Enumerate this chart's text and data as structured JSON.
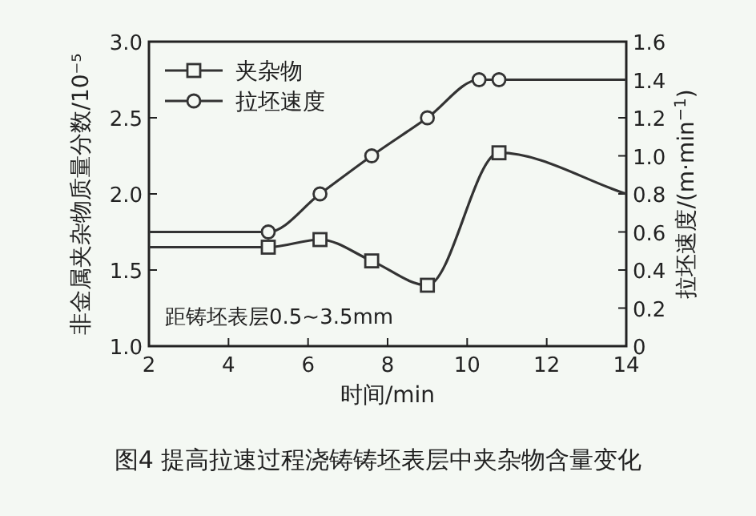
{
  "chart_data": {
    "type": "line",
    "title": "图4  提高拉速过程浇铸铸坯表层中夹杂物含量变化",
    "xlabel": "时间/min",
    "ylabel": "非金属夹杂物质量分数/10⁻⁵",
    "y2label": "拉坯速度/(m·min$^{−1}$)",
    "annotations": [
      "距铸坯表层0.5~3.5mm"
    ],
    "xlim": [
      2,
      14
    ],
    "xticks": [
      2,
      4,
      6,
      8,
      10,
      12,
      14
    ],
    "ylim": [
      1.0,
      3.0
    ],
    "yticks": [
      {
        "value": 1.0,
        "label": "1.0"
      },
      1.5,
      {
        "value": 2.0,
        "label": "2.0"
      },
      2.5,
      {
        "value": 3.0,
        "label": "3.0"
      }
    ],
    "y2lim": [
      0,
      1.6
    ],
    "y2ticks": [
      0,
      0.2,
      0.4,
      0.6,
      0.8,
      {
        "value": 1.0,
        "label": "1.0"
      },
      1.2,
      1.4,
      1.6
    ],
    "legend": "top left",
    "grid": false,
    "line_style": "solid",
    "series": [
      {
        "name": "夹杂物",
        "color": "#333333",
        "marker": "square",
        "axis": "y",
        "x": [
          2,
          5,
          6.3,
          7.6,
          9,
          10.8,
          14
        ],
        "values": [
          1.65,
          1.65,
          1.7,
          1.56,
          1.4,
          2.27,
          2.0
        ]
      },
      {
        "name": "拉坯速度",
        "color": "#333333",
        "marker": "circle",
        "axis": "y2",
        "x": [
          2,
          5,
          6.3,
          7.6,
          9,
          10.3,
          10.8,
          14
        ],
        "values": [
          0.6,
          0.6,
          0.8,
          1.0,
          1.2,
          1.4,
          1.4,
          1.4
        ]
      }
    ]
  }
}
